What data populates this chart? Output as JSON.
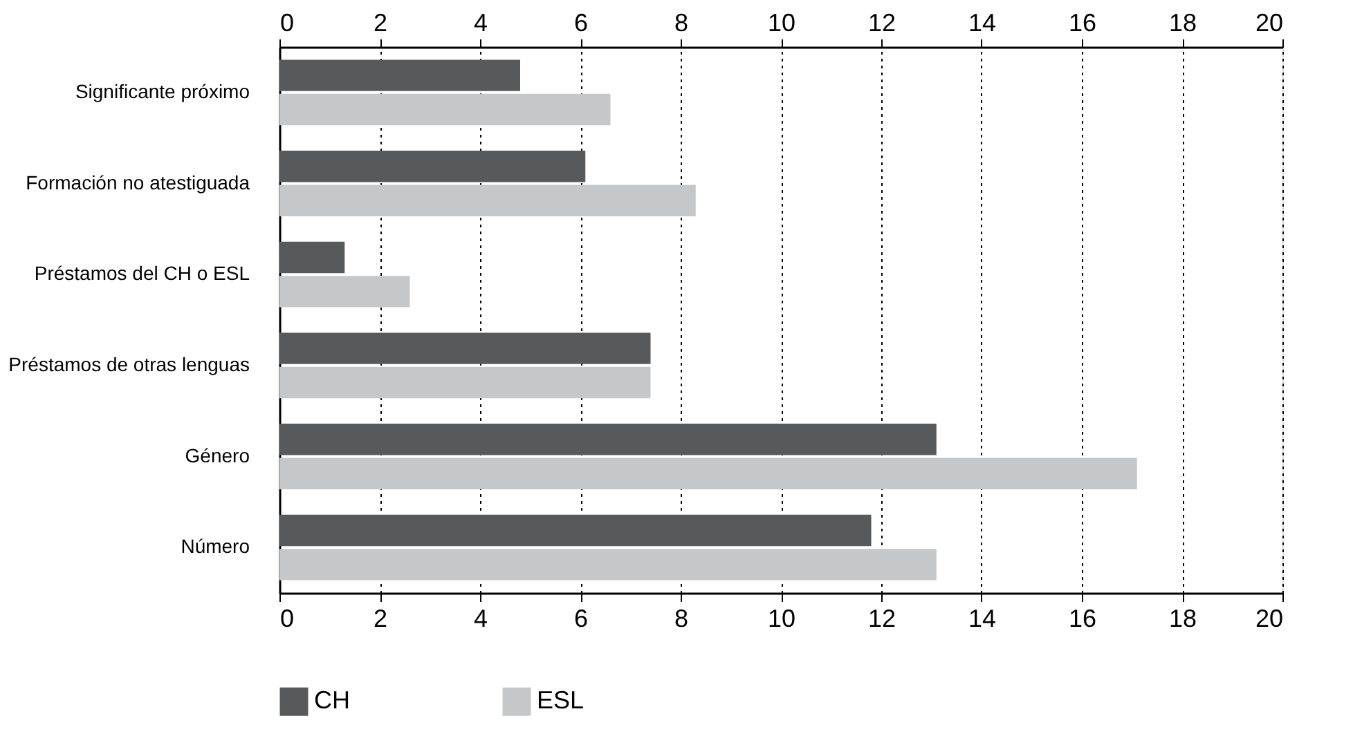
{
  "chart_data": {
    "type": "bar",
    "orientation": "horizontal",
    "categories": [
      "Significante próximo",
      "Formación no atestiguada",
      "Préstamos del CH o ESL",
      "Préstamos de otras lenguas",
      "Género",
      "Número"
    ],
    "series": [
      {
        "name": "CH",
        "color": "#58595b",
        "values": [
          4.8,
          6.1,
          1.3,
          7.4,
          13.1,
          11.8
        ]
      },
      {
        "name": "ESL",
        "color": "#c6c7c9",
        "values": [
          6.6,
          8.3,
          2.6,
          7.4,
          17.1,
          13.1
        ]
      }
    ],
    "xlim": [
      0,
      20
    ],
    "xticks": [
      0,
      2,
      4,
      6,
      8,
      10,
      12,
      14,
      16,
      18,
      20
    ],
    "x2lim": [
      0,
      20
    ],
    "x2ticks": [
      0,
      2,
      4,
      6,
      8,
      10,
      12,
      14,
      16,
      18,
      20
    ],
    "grid": "x",
    "legend": "bottom"
  }
}
